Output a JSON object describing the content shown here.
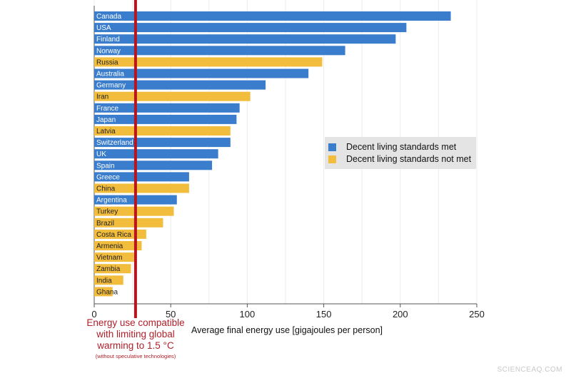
{
  "chart_data": {
    "type": "bar",
    "orientation": "horizontal",
    "categories": [
      "Canada",
      "USA",
      "Finland",
      "Norway",
      "Russia",
      "Australia",
      "Germany",
      "Iran",
      "France",
      "Japan",
      "Latvia",
      "Switzerland",
      "UK",
      "Spain",
      "Greece",
      "China",
      "Argentina",
      "Turkey",
      "Brazil",
      "Costa Rica",
      "Armenia",
      "Vietnam",
      "Zambia",
      "India",
      "Ghana"
    ],
    "values": [
      233,
      204,
      197,
      164,
      149,
      140,
      112,
      102,
      95,
      93,
      89,
      89,
      81,
      77,
      62,
      62,
      54,
      52,
      45,
      34,
      31,
      26,
      24,
      19,
      12
    ],
    "group": [
      "met",
      "met",
      "met",
      "met",
      "not",
      "met",
      "met",
      "not",
      "met",
      "met",
      "not",
      "met",
      "met",
      "met",
      "met",
      "not",
      "met",
      "not",
      "not",
      "not",
      "not",
      "not",
      "not",
      "not",
      "not"
    ],
    "xlabel": "Average final energy use [gigajoules per person]",
    "xlim": [
      0,
      250
    ],
    "xticks": [
      0,
      50,
      100,
      150,
      200,
      250
    ],
    "grid": true,
    "legend": {
      "placement": "right",
      "entries": [
        {
          "key": "met",
          "label": "Decent living standards met",
          "color": "#3a7dcc"
        },
        {
          "key": "not",
          "label": "Decent living standards not met",
          "color": "#f2bd3c"
        }
      ]
    },
    "reference_line": {
      "value": 27,
      "color": "#b8141c",
      "label": "Energy use compatible with limiting global warming to 1.5 °C",
      "sublabel": "(without speculative technologies)"
    }
  },
  "watermark": "SCIENCEAQ.COM"
}
